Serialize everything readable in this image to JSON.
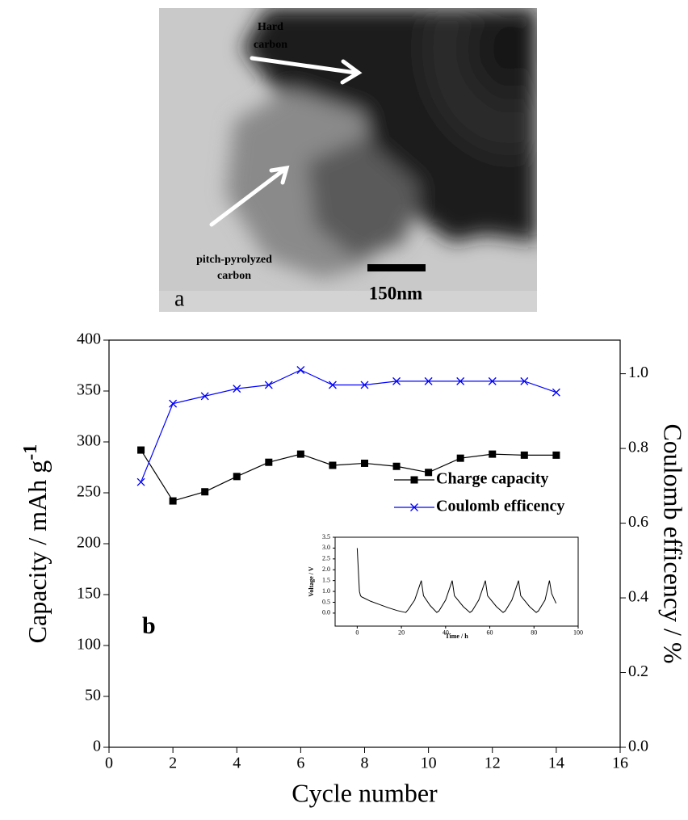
{
  "image": {
    "hard_carbon": [
      "Hard",
      "carbon"
    ],
    "pitch_carbon": [
      "pitch-pyrolyzed",
      "carbon"
    ],
    "scale_bar": "150nm",
    "panel": "a"
  },
  "chart_data": [
    {
      "type": "line",
      "annotation": "b",
      "xlabel": "Cycle number",
      "ylabel": [
        "Capacity / mAh g",
        "-1"
      ],
      "y2label": "Coulomb efficency / %",
      "x": [
        1,
        2,
        3,
        4,
        5,
        6,
        7,
        8,
        9,
        10,
        11,
        12,
        13,
        14
      ],
      "series": [
        {
          "name": "Charge capacity",
          "color": "#000000",
          "marker": "square",
          "values": [
            292,
            242,
            251,
            266,
            280,
            288,
            277,
            279,
            276,
            270,
            284,
            288,
            287,
            287
          ]
        },
        {
          "name": "Coulomb efficency",
          "color": "#0000ff",
          "marker": "cross",
          "axis": "y2",
          "values": [
            0.71,
            0.92,
            0.94,
            0.96,
            0.97,
            1.01,
            0.97,
            0.97,
            0.98,
            0.98,
            0.98,
            0.98,
            0.98,
            0.95
          ]
        }
      ],
      "xlim": [
        0,
        16
      ],
      "xticks": [
        0,
        2,
        4,
        6,
        8,
        10,
        12,
        14,
        16
      ],
      "ylim": [
        0,
        400
      ],
      "yticks": [
        0,
        50,
        100,
        150,
        200,
        250,
        300,
        350,
        400
      ],
      "y2lim": [
        0,
        1.09
      ],
      "y2ticks": [
        {
          "value": 0,
          "label": "0.0"
        },
        0.2,
        0.4,
        0.6,
        0.8,
        {
          "value": 1,
          "label": "1.0"
        }
      ]
    },
    {
      "type": "line",
      "xlabel": "Time / h",
      "ylabel": [
        "Voltage / V"
      ],
      "color": "#000000",
      "x": [
        0,
        0.5,
        1,
        1.5,
        2,
        3,
        6,
        10,
        14,
        18,
        21,
        22,
        23,
        26,
        29,
        30,
        33,
        36,
        37,
        40,
        43,
        44,
        48,
        51,
        52,
        55,
        58,
        59,
        63,
        66,
        67,
        70,
        73,
        74,
        78,
        81,
        82,
        85,
        87,
        88,
        90
      ],
      "values": [
        3.0,
        2.0,
        1.0,
        0.8,
        0.75,
        0.7,
        0.55,
        0.4,
        0.25,
        0.12,
        0.05,
        0.03,
        0.15,
        0.6,
        1.5,
        0.8,
        0.35,
        0.03,
        0.1,
        0.6,
        1.5,
        0.8,
        0.3,
        0.03,
        0.1,
        0.6,
        1.5,
        0.8,
        0.3,
        0.03,
        0.1,
        0.6,
        1.5,
        0.8,
        0.3,
        0.03,
        0.1,
        0.6,
        1.5,
        0.9,
        0.45
      ],
      "xlim": [
        -10,
        100
      ],
      "xticks": [
        0,
        20,
        40,
        60,
        80,
        100
      ],
      "ylim": [
        -0.6,
        3.5
      ],
      "yticks": [
        {
          "value": 0,
          "label": "0.0"
        },
        0.5,
        {
          "value": 1,
          "label": "1.0"
        },
        1.5,
        {
          "value": 2,
          "label": "2.0"
        },
        2.5,
        {
          "value": 3,
          "label": "3.0"
        },
        3.5
      ]
    }
  ]
}
